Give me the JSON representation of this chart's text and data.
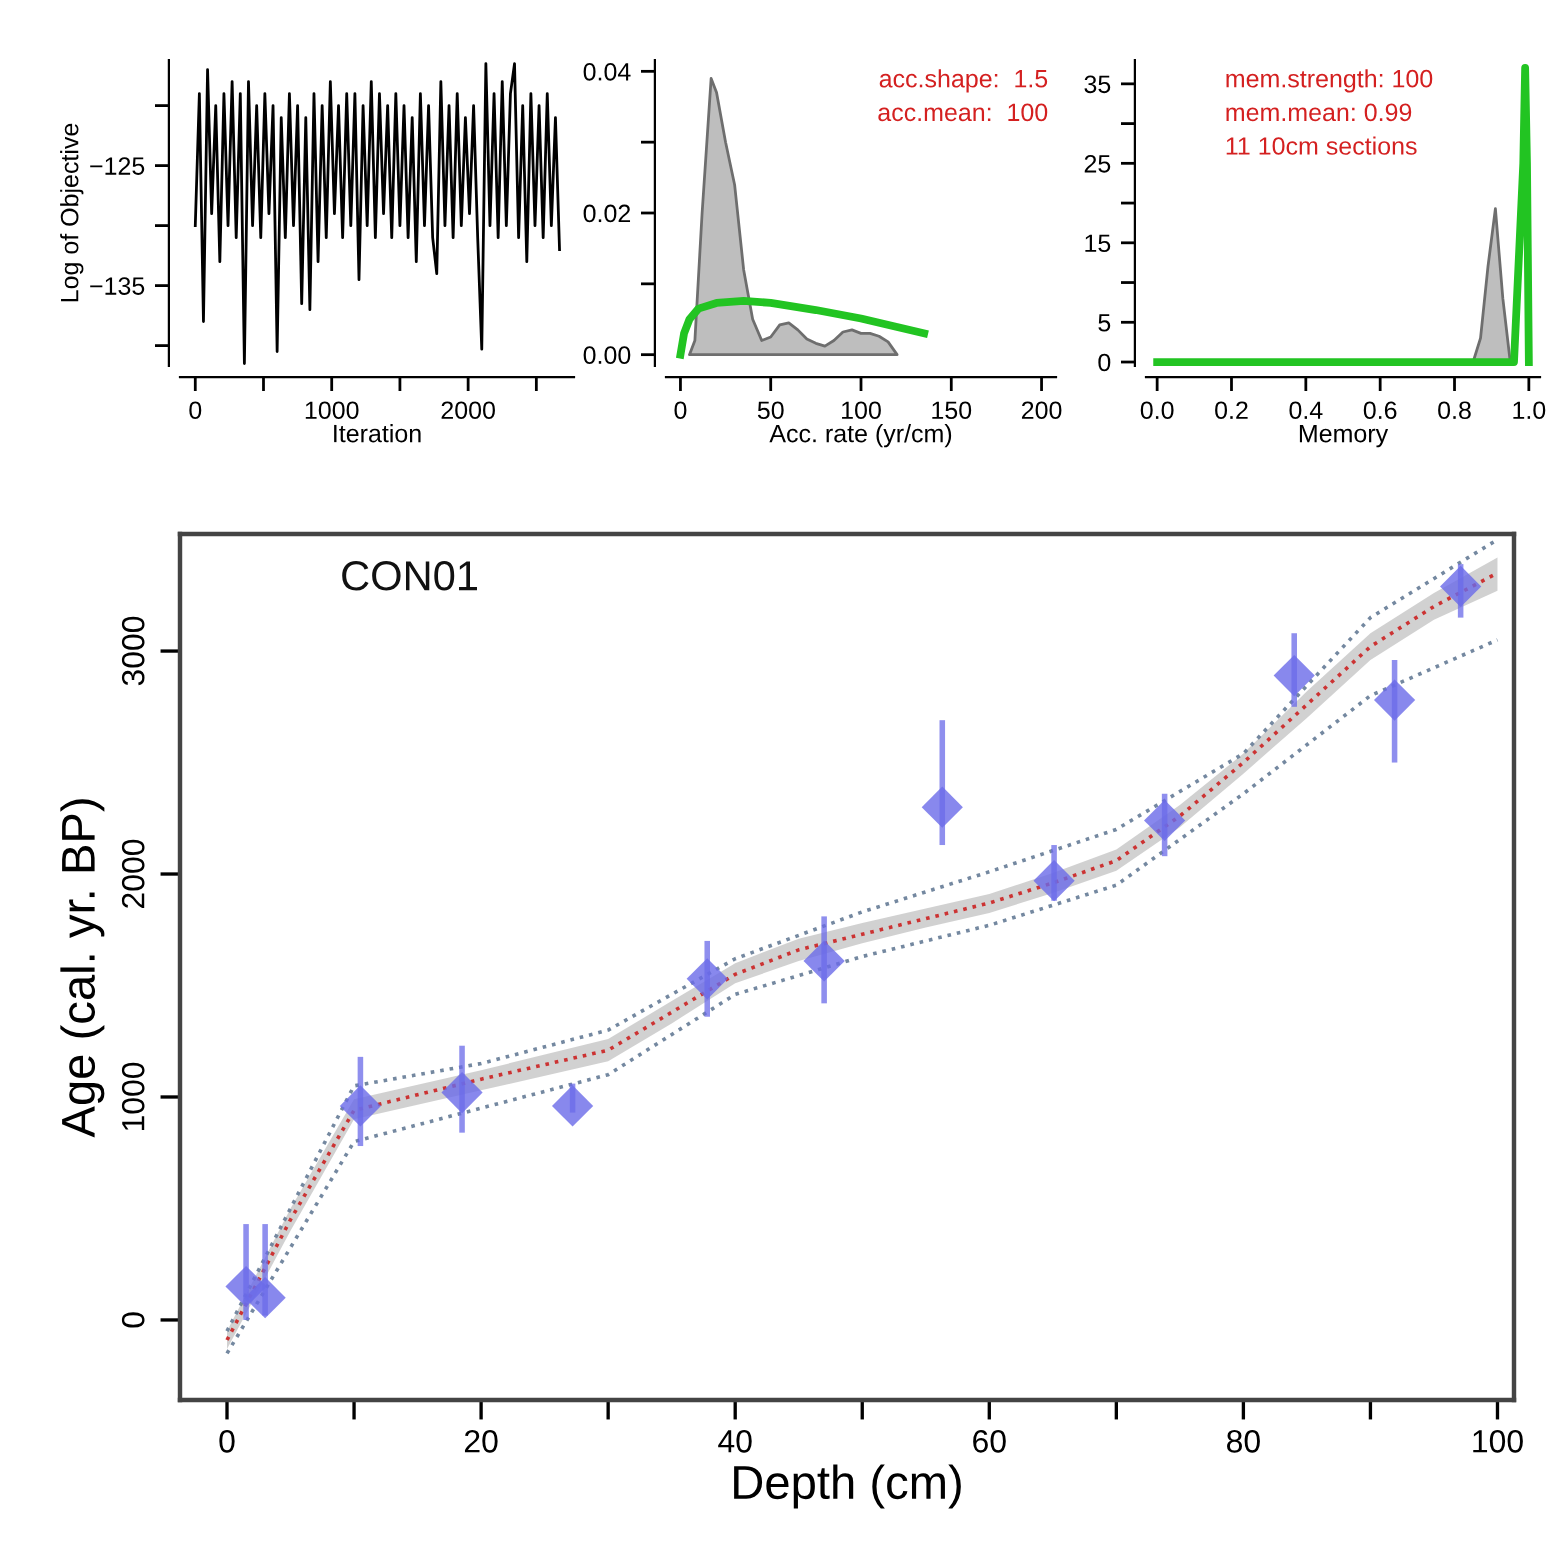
{
  "chart_data": [
    {
      "type": "line",
      "ylabel": "Log of Objective",
      "xlabel": "Iteration",
      "xlim": [
        -112,
        2776
      ],
      "ylim": [
        -141.7,
        -116.2
      ],
      "xticks": [
        0,
        {
          "value": 500,
          "label": null
        },
        1000,
        {
          "value": 1500,
          "label": null
        },
        2000,
        {
          "value": 2500,
          "label": null
        }
      ],
      "yticks": [
        {
          "value": -120,
          "label": null
        },
        {
          "value": -125,
          "label": "−125"
        },
        {
          "value": -130,
          "label": null
        },
        {
          "value": -135,
          "label": "−135"
        },
        {
          "value": -140,
          "label": null
        }
      ],
      "grid": false,
      "series": [
        {
          "color": "#000000",
          "x": [
            0,
            30,
            60,
            90,
            120,
            150,
            180,
            210,
            240,
            270,
            300,
            330,
            360,
            390,
            420,
            450,
            480,
            510,
            540,
            570,
            600,
            630,
            660,
            690,
            720,
            750,
            780,
            810,
            840,
            870,
            900,
            930,
            960,
            990,
            1020,
            1050,
            1080,
            1110,
            1140,
            1170,
            1200,
            1230,
            1260,
            1290,
            1320,
            1350,
            1380,
            1410,
            1440,
            1470,
            1500,
            1530,
            1560,
            1590,
            1620,
            1650,
            1680,
            1710,
            1740,
            1770,
            1800,
            1830,
            1860,
            1890,
            1920,
            1950,
            1980,
            2010,
            2040,
            2070,
            2100,
            2130,
            2160,
            2190,
            2220,
            2250,
            2280,
            2310,
            2340,
            2370,
            2400,
            2430,
            2460,
            2490,
            2520,
            2550,
            2580,
            2610,
            2640,
            2670
          ],
          "values": [
            -130,
            -119,
            -138,
            -117,
            -129,
            -120,
            -133,
            -119,
            -130,
            -118,
            -131,
            -119,
            -141.5,
            -118,
            -130,
            -120,
            -131,
            -119,
            -129,
            -120,
            -140.5,
            -121,
            -131,
            -119,
            -130,
            -120,
            -136.5,
            -121,
            -137,
            -119,
            -133,
            -120,
            -131,
            -118,
            -129,
            -120,
            -131,
            -119,
            -130,
            -119,
            -134.5,
            -120,
            -130,
            -118,
            -131,
            -119,
            -129,
            -120,
            -131,
            -119,
            -130,
            -120,
            -131,
            -121,
            -133,
            -119,
            -130,
            -120,
            -131,
            -134,
            -118,
            -130,
            -120,
            -131,
            -119,
            -130,
            -121,
            -129,
            -120,
            -131,
            -140.3,
            -116.5,
            -130,
            -119,
            -131,
            -118,
            -130,
            -119,
            -116.5,
            -131,
            -120,
            -133,
            -119,
            -130,
            -120,
            -131,
            -119,
            -130,
            -121,
            -132
          ]
        }
      ]
    },
    {
      "type": "area",
      "xlabel": "Acc. rate (yr/cm)",
      "xlim": [
        -8,
        208
      ],
      "ylim": [
        -0.0016,
        0.0416
      ],
      "xticks": [
        0,
        50,
        100,
        150,
        200
      ],
      "yticks": [
        {
          "value": 0,
          "label": "0.00"
        },
        {
          "value": 0.01,
          "label": null
        },
        {
          "value": 0.02,
          "label": "0.02"
        },
        {
          "value": 0.03,
          "label": null
        },
        {
          "value": 0.04,
          "label": "0.04"
        }
      ],
      "annotations": [
        "acc.shape:  1.5",
        "acc.mean:  100"
      ],
      "grid": false,
      "series": [
        {
          "type": "area",
          "color": "#bebebe",
          "x": [
            5,
            8,
            12,
            17,
            20,
            25,
            30,
            35,
            40,
            45,
            50,
            55,
            60,
            65,
            70,
            75,
            80,
            85,
            90,
            95,
            100,
            105,
            110,
            115,
            120
          ],
          "values": [
            0,
            0.002,
            0.02,
            0.039,
            0.037,
            0.03,
            0.024,
            0.012,
            0.005,
            0.002,
            0.0025,
            0.0042,
            0.0045,
            0.0035,
            0.0022,
            0.0016,
            0.0012,
            0.002,
            0.0032,
            0.0035,
            0.003,
            0.003,
            0.0026,
            0.0018,
            0
          ]
        },
        {
          "type": "line",
          "color": "#22c422",
          "x": [
            0,
            2,
            5,
            10,
            20,
            35,
            50,
            75,
            100,
            120,
            135
          ],
          "values": [
            0,
            0.003,
            0.005,
            0.0065,
            0.0073,
            0.0076,
            0.0073,
            0.0063,
            0.0051,
            0.0039,
            0.003
          ]
        }
      ]
    },
    {
      "type": "area",
      "xlabel": "Memory",
      "xlim": [
        -0.03,
        1.03
      ],
      "ylim": [
        -0.5,
        38
      ],
      "xticks": [
        {
          "value": 0,
          "label": "0.0"
        },
        {
          "value": 0.2,
          "label": "0.2"
        },
        {
          "value": 0.4,
          "label": "0.4"
        },
        {
          "value": 0.6,
          "label": "0.6"
        },
        {
          "value": 0.8,
          "label": "0.8"
        },
        {
          "value": 1,
          "label": "1.0"
        }
      ],
      "yticks": [
        0,
        5,
        {
          "value": 10,
          "label": null
        },
        15,
        {
          "value": 20,
          "label": null
        },
        25,
        {
          "value": 30,
          "label": null
        },
        35
      ],
      "annotations": [
        "mem.strength: 100",
        "mem.mean: 0.99",
        "11 10cm sections"
      ],
      "grid": false,
      "series": [
        {
          "type": "area",
          "color": "#bebebe",
          "x": [
            0.85,
            0.87,
            0.89,
            0.91,
            0.93,
            0.95
          ],
          "values": [
            0,
            3,
            12,
            19.3,
            8,
            0
          ]
        },
        {
          "type": "line",
          "color": "#22c422",
          "x": [
            0,
            0.96,
            0.985,
            0.99,
            0.995,
            1.0
          ],
          "values": [
            0,
            0,
            25,
            37,
            25,
            0
          ]
        }
      ]
    },
    {
      "type": "line",
      "xlabel": "Depth (cm)",
      "ylabel": "Age (cal. yr. BP)",
      "xlim": [
        -3.7,
        101.3
      ],
      "ylim": [
        -359,
        3525
      ],
      "xticks": [
        0,
        {
          "value": 10,
          "label": null
        },
        20,
        {
          "value": 30,
          "label": null
        },
        40,
        {
          "value": 50,
          "label": null
        },
        60,
        {
          "value": 70,
          "label": null
        },
        80,
        {
          "value": 90,
          "label": null
        },
        100
      ],
      "yticks": [
        0,
        1000,
        2000,
        3000
      ],
      "annotations": [
        "CON01"
      ],
      "grid": false,
      "series": [
        {
          "type": "line",
          "color": "#cc3333",
          "line_style": "dotted",
          "x": [
            0,
            5,
            10,
            20,
            30,
            35,
            40,
            45,
            50,
            55,
            60,
            65,
            70,
            75,
            80,
            85,
            90,
            95,
            100
          ],
          "values": [
            -90,
            450,
            940,
            1080,
            1210,
            1380,
            1550,
            1660,
            1730,
            1800,
            1870,
            1960,
            2060,
            2260,
            2500,
            2760,
            3020,
            3200,
            3350
          ],
          "lower": [
            -130,
            400,
            900,
            1030,
            1160,
            1330,
            1510,
            1610,
            1690,
            1760,
            1825,
            1915,
            2015,
            2210,
            2450,
            2700,
            2960,
            3140,
            3270
          ],
          "upper": [
            -50,
            500,
            990,
            1120,
            1260,
            1430,
            1600,
            1710,
            1780,
            1845,
            1910,
            2005,
            2110,
            2310,
            2540,
            2820,
            3080,
            3260,
            3420
          ]
        },
        {
          "type": "line",
          "color": "#7488a0",
          "line_style": "dotted",
          "x": [
            0,
            10,
            20,
            30,
            40,
            50,
            60,
            70,
            80,
            90,
            100
          ],
          "values": [
            -50,
            1050,
            1150,
            1300,
            1620,
            1830,
            2010,
            2200,
            2540,
            3150,
            3500
          ]
        },
        {
          "type": "line",
          "color": "#7488a0",
          "line_style": "dotted",
          "x": [
            0,
            10,
            20,
            30,
            40,
            50,
            60,
            70,
            80,
            90,
            100
          ],
          "values": [
            -150,
            800,
            950,
            1100,
            1460,
            1630,
            1770,
            1950,
            2360,
            2800,
            3050
          ]
        },
        {
          "type": "scatter",
          "color": "#6a6ae8",
          "marker": "diamond",
          "x": [
            1.5,
            3,
            10.5,
            18.5,
            27.2,
            37.8,
            47,
            56.3,
            65.1,
            73.8,
            84,
            91.9,
            97.1
          ],
          "values": [
            150,
            100,
            960,
            1020,
            960,
            1530,
            1610,
            2300,
            1970,
            2240,
            2890,
            2780,
            3290
          ],
          "errors": [
            [
              0,
              430
            ],
            [
              20,
              430
            ],
            [
              780,
              1180
            ],
            [
              840,
              1230
            ],
            [
              930,
              1060
            ],
            [
              1360,
              1700
            ],
            [
              1420,
              1810
            ],
            [
              2130,
              2690
            ],
            [
              1880,
              2130
            ],
            [
              2080,
              2360
            ],
            [
              2750,
              3080
            ],
            [
              2500,
              2960
            ],
            [
              3150,
              3390
            ]
          ]
        }
      ]
    }
  ]
}
